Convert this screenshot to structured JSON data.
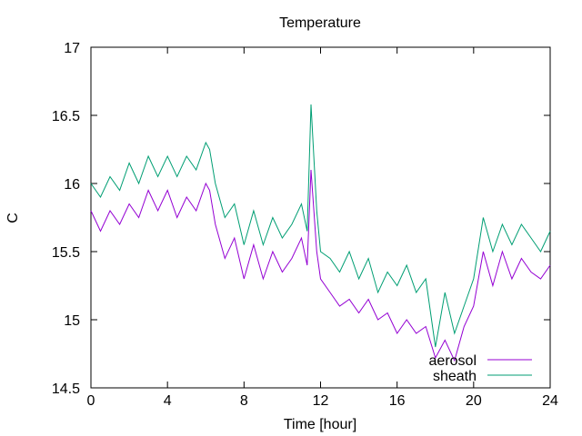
{
  "chart_data": {
    "type": "line",
    "title": "Temperature",
    "xlabel": "Time [hour]",
    "ylabel": "C",
    "xlim": [
      0,
      24
    ],
    "ylim": [
      14.5,
      17
    ],
    "xticks": [
      0,
      4,
      8,
      12,
      16,
      20,
      24
    ],
    "yticks": [
      14.5,
      15,
      15.5,
      16,
      16.5,
      17
    ],
    "ytick_labels": [
      "14.5",
      "15",
      "15.5",
      "16",
      "16.5",
      "17"
    ],
    "grid": false,
    "legend_position": "bottom-right",
    "series": [
      {
        "name": "aerosol",
        "color": "#9400d3",
        "x": [
          0,
          0.5,
          1,
          1.5,
          2,
          2.5,
          3,
          3.5,
          4,
          4.5,
          5,
          5.5,
          6,
          6.2,
          6.5,
          7,
          7.5,
          8,
          8.5,
          9,
          9.5,
          10,
          10.5,
          11,
          11.3,
          11.5,
          11.8,
          12,
          12.5,
          13,
          13.5,
          14,
          14.5,
          15,
          15.5,
          16,
          16.5,
          17,
          17.5,
          18,
          18.5,
          19,
          19.5,
          20,
          20.5,
          21,
          21.5,
          22,
          22.5,
          23,
          23.5,
          24
        ],
        "y": [
          15.8,
          15.65,
          15.8,
          15.7,
          15.85,
          15.75,
          15.95,
          15.8,
          15.95,
          15.75,
          15.9,
          15.8,
          16.0,
          15.95,
          15.7,
          15.45,
          15.6,
          15.3,
          15.55,
          15.3,
          15.5,
          15.35,
          15.45,
          15.6,
          15.4,
          16.1,
          15.5,
          15.3,
          15.2,
          15.1,
          15.15,
          15.05,
          15.15,
          15.0,
          15.05,
          14.9,
          15.0,
          14.9,
          14.95,
          14.72,
          14.85,
          14.7,
          14.95,
          15.1,
          15.5,
          15.25,
          15.5,
          15.3,
          15.45,
          15.35,
          15.3,
          15.4
        ]
      },
      {
        "name": "sheath",
        "color": "#009e73",
        "x": [
          0,
          0.5,
          1,
          1.5,
          2,
          2.5,
          3,
          3.5,
          4,
          4.5,
          5,
          5.5,
          6,
          6.2,
          6.5,
          7,
          7.5,
          8,
          8.5,
          9,
          9.5,
          10,
          10.5,
          11,
          11.3,
          11.5,
          11.8,
          12,
          12.5,
          13,
          13.5,
          14,
          14.5,
          15,
          15.5,
          16,
          16.5,
          17,
          17.5,
          18,
          18.5,
          19,
          19.5,
          20,
          20.5,
          21,
          21.5,
          22,
          22.5,
          23,
          23.5,
          24
        ],
        "y": [
          16.0,
          15.9,
          16.05,
          15.95,
          16.15,
          16.0,
          16.2,
          16.05,
          16.2,
          16.05,
          16.2,
          16.1,
          16.3,
          16.25,
          16.0,
          15.75,
          15.85,
          15.55,
          15.8,
          15.55,
          15.75,
          15.6,
          15.7,
          15.85,
          15.65,
          16.58,
          15.8,
          15.5,
          15.45,
          15.35,
          15.5,
          15.3,
          15.45,
          15.2,
          15.35,
          15.25,
          15.4,
          15.2,
          15.3,
          14.8,
          15.2,
          14.9,
          15.1,
          15.3,
          15.75,
          15.5,
          15.7,
          15.55,
          15.7,
          15.6,
          15.5,
          15.65
        ]
      }
    ]
  }
}
